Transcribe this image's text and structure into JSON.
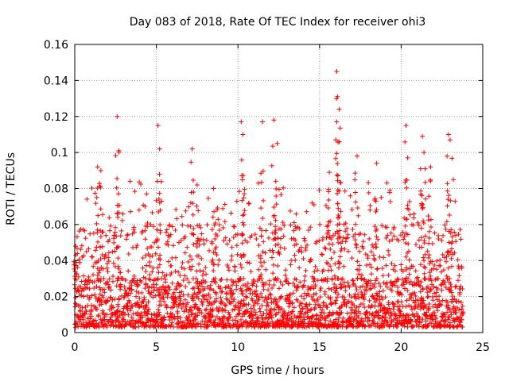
{
  "chart_data": {
    "type": "scatter",
    "title": "Day 083 of 2018, Rate Of TEC Index for receiver ohi3",
    "xlabel": "GPS time / hours",
    "ylabel": "ROTI / TECUs",
    "xlim": [
      0,
      25
    ],
    "ylim": [
      0,
      0.16
    ],
    "xticks": [
      0,
      5,
      10,
      15,
      20,
      25
    ],
    "xtick_labels": [
      "0",
      "5",
      "10",
      "15",
      "20",
      "25"
    ],
    "yticks": [
      0,
      0.02,
      0.04,
      0.06,
      0.08,
      0.1,
      0.12,
      0.14,
      0.16
    ],
    "ytick_labels": [
      "0",
      "0.02",
      "0.04",
      "0.06",
      "0.08",
      "0.1",
      "0.12",
      "0.14",
      "0.16"
    ],
    "grid": true,
    "marker": "+",
    "color": "#ff0000",
    "series": [
      {
        "name": "ROTI",
        "note": "dense scatter of ~15-second ROTI samples from 0 to ~23.8 h; bulk 0.003-0.03, frequent spikes to 0.05-0.09",
        "baseline_range": [
          0.003,
          0.03
        ],
        "x_extent": [
          0,
          23.8
        ],
        "peaks": [
          {
            "x": 0.05,
            "y": 0.048
          },
          {
            "x": 1.4,
            "y": 0.092
          },
          {
            "x": 1.6,
            "y": 0.09
          },
          {
            "x": 2.6,
            "y": 0.12
          },
          {
            "x": 2.7,
            "y": 0.101
          },
          {
            "x": 4.4,
            "y": 0.077
          },
          {
            "x": 5.1,
            "y": 0.115
          },
          {
            "x": 5.2,
            "y": 0.102
          },
          {
            "x": 7.2,
            "y": 0.102
          },
          {
            "x": 7.5,
            "y": 0.082
          },
          {
            "x": 8.5,
            "y": 0.08
          },
          {
            "x": 10.2,
            "y": 0.117
          },
          {
            "x": 10.3,
            "y": 0.11
          },
          {
            "x": 11.5,
            "y": 0.117
          },
          {
            "x": 12.2,
            "y": 0.118
          },
          {
            "x": 12.4,
            "y": 0.105
          },
          {
            "x": 15.6,
            "y": 0.089
          },
          {
            "x": 16.05,
            "y": 0.145
          },
          {
            "x": 16.1,
            "y": 0.131
          },
          {
            "x": 16.2,
            "y": 0.124
          },
          {
            "x": 16.2,
            "y": 0.106
          },
          {
            "x": 17.3,
            "y": 0.098
          },
          {
            "x": 18.5,
            "y": 0.094
          },
          {
            "x": 20.3,
            "y": 0.115
          },
          {
            "x": 20.4,
            "y": 0.097
          },
          {
            "x": 21.3,
            "y": 0.109
          },
          {
            "x": 21.4,
            "y": 0.1
          },
          {
            "x": 21.8,
            "y": 0.092
          },
          {
            "x": 22.9,
            "y": 0.11
          },
          {
            "x": 23.0,
            "y": 0.107
          }
        ]
      }
    ]
  }
}
